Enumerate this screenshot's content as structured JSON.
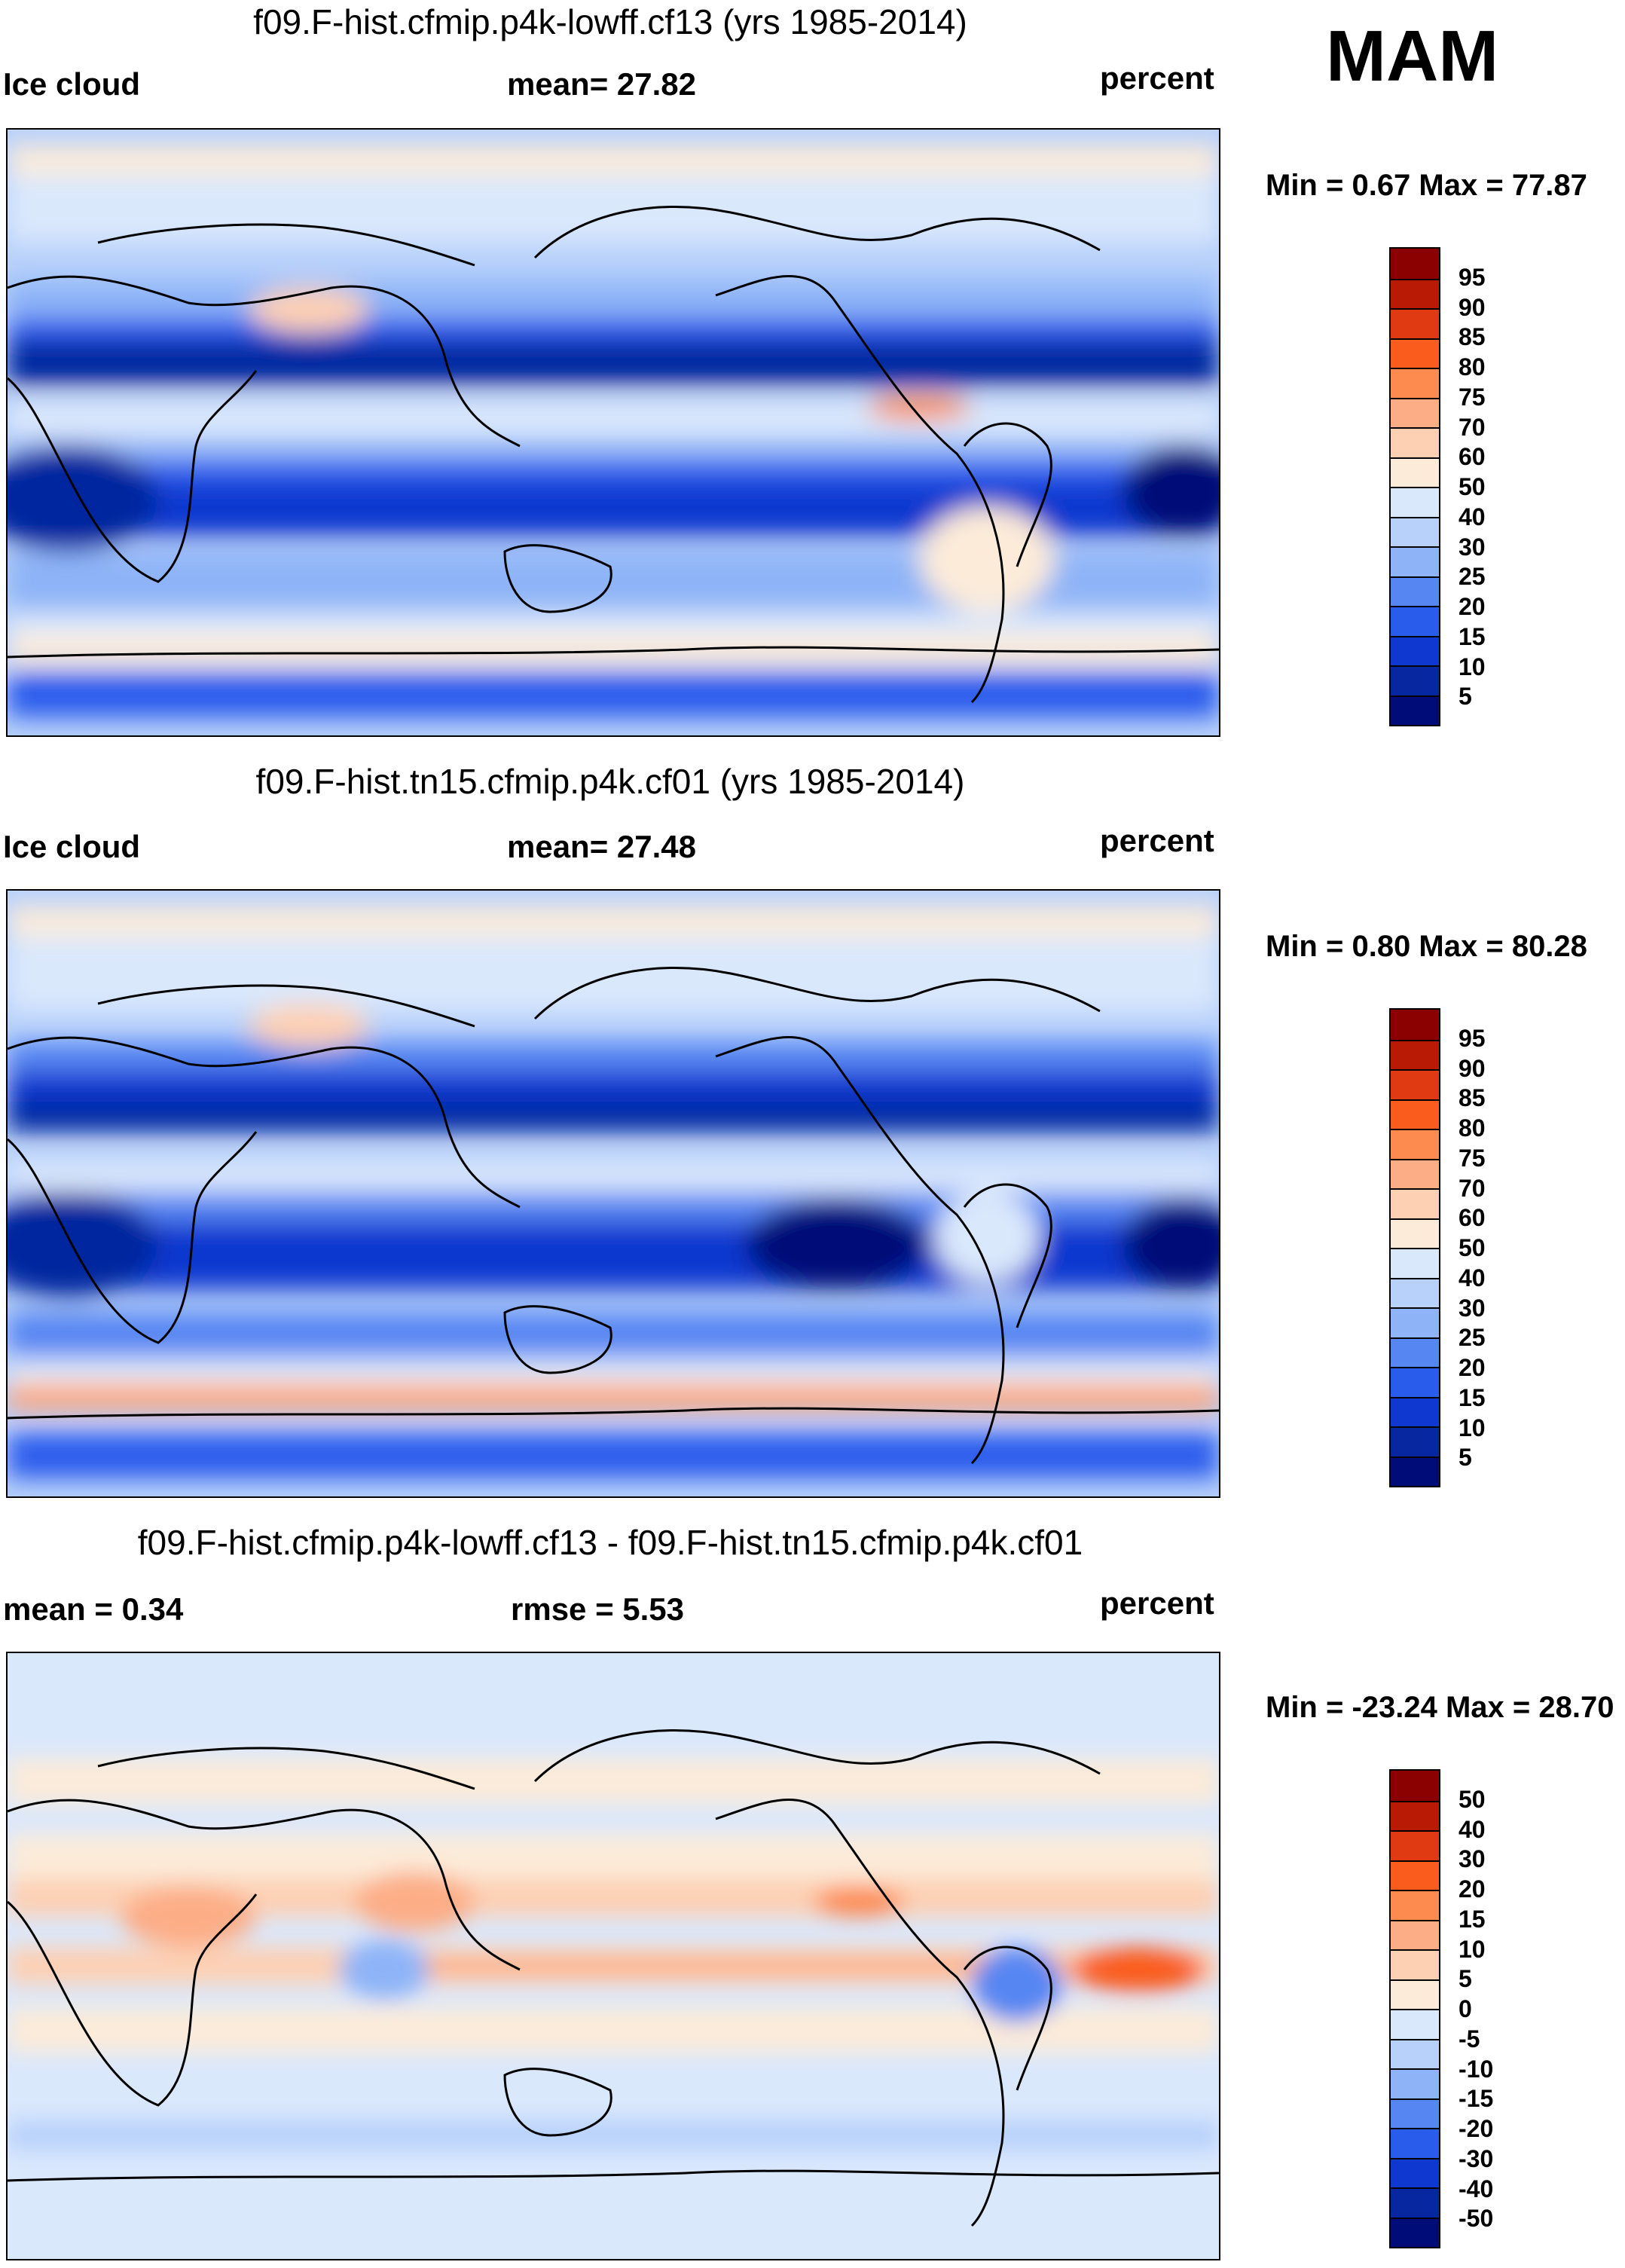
{
  "season": "MAM",
  "chart_data": [
    {
      "type": "heatmap",
      "title": "f09.F-hist.cfmip.p4k-lowff.cf13 (yrs 1985-2014)",
      "variable": "Ice cloud",
      "stat_text": "mean=  27.82",
      "units": "percent",
      "range_text": "Min =   0.67 Max =  77.87",
      "mean": 27.82,
      "min": 0.67,
      "max": 77.87,
      "levels": [
        95,
        90,
        85,
        80,
        75,
        70,
        60,
        50,
        40,
        30,
        25,
        20,
        15,
        10,
        5
      ],
      "level_labels": [
        "95",
        "90",
        "85",
        "80",
        "75",
        "70",
        "60",
        "50",
        "40",
        "30",
        "25",
        "20",
        "15",
        "10",
        "5"
      ],
      "colors": [
        "#8b0000",
        "#b81a06",
        "#e03a12",
        "#fa5c1e",
        "#fd8a4f",
        "#fcad86",
        "#fdd0b4",
        "#fcebd9",
        "#dae8fc",
        "#b8d1fb",
        "#8eb4f7",
        "#5686f2",
        "#2a5cec",
        "#0e38cf",
        "#06279f",
        "#000c78"
      ]
    },
    {
      "type": "heatmap",
      "title": "f09.F-hist.tn15.cfmip.p4k.cf01 (yrs 1985-2014)",
      "variable": "Ice cloud",
      "stat_text": "mean=  27.48",
      "units": "percent",
      "range_text": "Min =   0.80 Max =  80.28",
      "mean": 27.48,
      "min": 0.8,
      "max": 80.28,
      "levels": [
        95,
        90,
        85,
        80,
        75,
        70,
        60,
        50,
        40,
        30,
        25,
        20,
        15,
        10,
        5
      ],
      "level_labels": [
        "95",
        "90",
        "85",
        "80",
        "75",
        "70",
        "60",
        "50",
        "40",
        "30",
        "25",
        "20",
        "15",
        "10",
        "5"
      ],
      "colors": [
        "#8b0000",
        "#b81a06",
        "#e03a12",
        "#fa5c1e",
        "#fd8a4f",
        "#fcad86",
        "#fdd0b4",
        "#fcebd9",
        "#dae8fc",
        "#b8d1fb",
        "#8eb4f7",
        "#5686f2",
        "#2a5cec",
        "#0e38cf",
        "#06279f",
        "#000c78"
      ]
    },
    {
      "type": "heatmap",
      "title": "f09.F-hist.cfmip.p4k-lowff.cf13 - f09.F-hist.tn15.cfmip.p4k.cf01",
      "variable": "mean =   0.34",
      "stat_text": "rmse =    5.53",
      "units": "percent",
      "range_text": "Min = -23.24 Max =  28.70",
      "mean": 0.34,
      "rmse": 5.53,
      "min": -23.24,
      "max": 28.7,
      "levels": [
        50,
        40,
        30,
        20,
        15,
        10,
        5,
        0,
        -5,
        -10,
        -15,
        -20,
        -30,
        -40,
        -50
      ],
      "level_labels": [
        "50",
        "40",
        "30",
        "20",
        "15",
        "10",
        "5",
        "0",
        "-5",
        "-10",
        "-15",
        "-20",
        "-30",
        "-40",
        "-50"
      ],
      "colors": [
        "#8b0000",
        "#b81a06",
        "#e03a12",
        "#fa5c1e",
        "#fd8a4f",
        "#fcad86",
        "#fdd0b4",
        "#fcebd9",
        "#dae8fc",
        "#b8d1fb",
        "#8eb4f7",
        "#5686f2",
        "#2a5cec",
        "#0e38cf",
        "#06279f",
        "#000c78"
      ]
    }
  ]
}
